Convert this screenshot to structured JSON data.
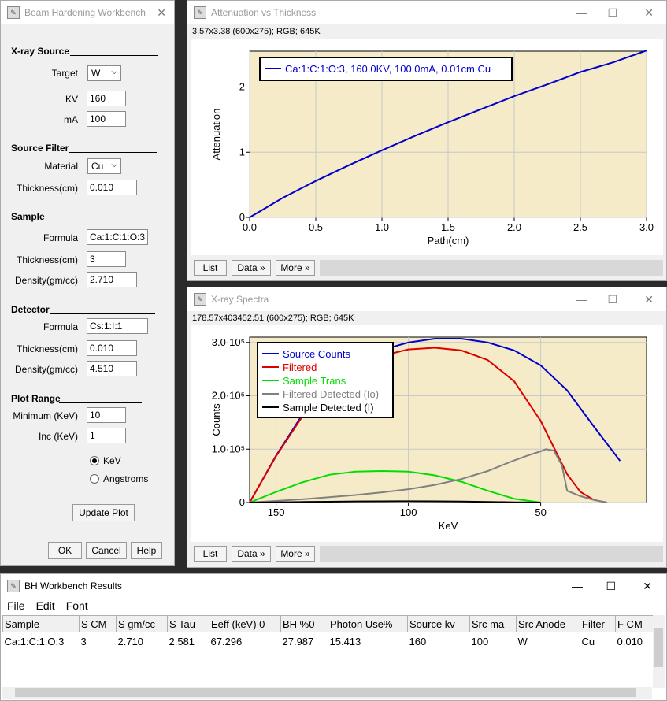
{
  "workbench": {
    "title": "Beam Hardening Workbench",
    "xray_source": {
      "heading": "X-ray Source",
      "target_label": "Target",
      "target_value": "W",
      "kv_label": "KV",
      "kv_value": "160",
      "ma_label": "mA",
      "ma_value": "100"
    },
    "source_filter": {
      "heading": "Source Filter",
      "material_label": "Material",
      "material_value": "Cu",
      "thickness_label": "Thickness(cm)",
      "thickness_value": "0.010"
    },
    "sample": {
      "heading": "Sample",
      "formula_label": "Formula",
      "formula_value": "Ca:1:C:1:O:3",
      "thickness_label": "Thickness(cm)",
      "thickness_value": "3",
      "density_label": "Density(gm/cc)",
      "density_value": "2.710"
    },
    "detector": {
      "heading": "Detector",
      "formula_label": "Formula",
      "formula_value": "Cs:1:I:1",
      "thickness_label": "Thickness(cm)",
      "thickness_value": "0.010",
      "density_label": "Density(gm/cc)",
      "density_value": "4.510"
    },
    "plot_range": {
      "heading": "Plot Range",
      "min_label": "Minimum (KeV)",
      "min_value": "10",
      "inc_label": "Inc (KeV)",
      "inc_value": "1",
      "radio_kev": "KeV",
      "radio_angstroms": "Angstroms",
      "selected": "KeV"
    },
    "update_button": "Update Plot",
    "ok_button": "OK",
    "cancel_button": "Cancel",
    "help_button": "Help"
  },
  "attenuation_window": {
    "title": "Attenuation vs Thickness",
    "info": "3.57x3.38   (600x275); RGB; 645K",
    "buttons": [
      "List",
      "Data »",
      "More »"
    ]
  },
  "spectra_window": {
    "title": "X-ray Spectra",
    "info": "178.57x403452.51   (600x275); RGB; 645K",
    "buttons": [
      "List",
      "Data »",
      "More »"
    ]
  },
  "results_window": {
    "title": "BH Workbench Results",
    "menu": [
      "File",
      "Edit",
      "Font"
    ],
    "columns": [
      "Sample",
      "S CM",
      "S gm/cc",
      "S Tau",
      "Eeff (keV) 0",
      "BH %0",
      "Photon Use%",
      "Source kv",
      "Src ma",
      "Src Anode",
      "Filter",
      "F CM"
    ],
    "rows": [
      [
        "Ca:1:C:1:O:3",
        "3",
        "2.710",
        "2.581",
        "67.296",
        "27.987",
        "15.413",
        "160",
        "100",
        "W",
        "Cu",
        "0.010"
      ]
    ]
  },
  "colors": {
    "plot_bg": "#f5ebc8",
    "blue": "#0000cc",
    "red": "#dd0000",
    "green": "#00dd00",
    "gray": "#808080",
    "black": "#000000"
  },
  "chart_data": [
    {
      "type": "line",
      "xlabel": "Path(cm)",
      "ylabel": "Attenuation",
      "xlim": [
        0,
        3.0
      ],
      "ylim": [
        0,
        2.55
      ],
      "x_ticks": [
        "0.0",
        "0.5",
        "1.0",
        "1.5",
        "2.0",
        "2.5",
        "3.0"
      ],
      "y_ticks": [
        "0",
        "1",
        "2"
      ],
      "legend_position": "top-left",
      "series": [
        {
          "name": "Ca:1:C:1:O:3, 160.0KV, 100.0mA, 0.01cm Cu",
          "color": "#0000cc",
          "x": [
            0,
            0.1,
            0.25,
            0.5,
            0.75,
            1.0,
            1.25,
            1.5,
            1.75,
            2.0,
            2.25,
            2.5,
            2.75,
            3.0
          ],
          "y": [
            0,
            0.12,
            0.3,
            0.56,
            0.8,
            1.03,
            1.25,
            1.46,
            1.66,
            1.86,
            2.04,
            2.23,
            2.38,
            2.56
          ]
        }
      ]
    },
    {
      "type": "line",
      "xlabel": "KeV",
      "ylabel": "Counts",
      "xlim": [
        160,
        10
      ],
      "ylim": [
        0,
        310000
      ],
      "x_ticks": [
        "150",
        "100",
        "50"
      ],
      "y_ticks": [
        "0",
        "1.0·10⁵",
        "2.0·10⁵",
        "3.0·10⁵"
      ],
      "legend_position": "top-left",
      "series": [
        {
          "name": "Source Counts",
          "color": "#0000cc",
          "x": [
            160,
            150,
            140,
            130,
            120,
            110,
            100,
            90,
            80,
            70,
            60,
            50,
            40,
            30,
            20
          ],
          "y": [
            0,
            88000,
            165000,
            222000,
            260000,
            286000,
            300000,
            307000,
            307000,
            300000,
            285000,
            257000,
            210000,
            143000,
            78000
          ]
        },
        {
          "name": "Filtered",
          "color": "#dd0000",
          "x": [
            160,
            150,
            140,
            130,
            120,
            110,
            100,
            90,
            80,
            70,
            60,
            50,
            40,
            35,
            30,
            25
          ],
          "y": [
            0,
            87000,
            162000,
            217000,
            252000,
            275000,
            287000,
            290000,
            285000,
            267000,
            227000,
            153000,
            53000,
            20000,
            5000,
            0
          ]
        },
        {
          "name": "Sample Trans",
          "color": "#00dd00",
          "x": [
            160,
            150,
            140,
            130,
            120,
            110,
            100,
            90,
            80,
            70,
            60,
            50
          ],
          "y": [
            0,
            20000,
            38000,
            52000,
            58000,
            59000,
            58000,
            51000,
            39000,
            22000,
            7000,
            0
          ]
        },
        {
          "name": "Filtered Detected (Io)",
          "color": "#808080",
          "x": [
            160,
            150,
            140,
            130,
            120,
            110,
            100,
            90,
            80,
            70,
            60,
            55,
            50,
            48,
            45,
            42,
            40,
            35,
            30,
            25
          ],
          "y": [
            0,
            3000,
            6000,
            10000,
            14000,
            19000,
            25000,
            33000,
            44000,
            59000,
            79000,
            88000,
            96000,
            100000,
            97000,
            70000,
            22000,
            12000,
            5000,
            0
          ]
        },
        {
          "name": "Sample Detected (I)",
          "color": "#000000",
          "x": [
            160,
            150,
            140,
            130,
            120,
            110,
            100,
            90,
            80,
            70,
            60,
            50
          ],
          "y": [
            0,
            500,
            1000,
            1500,
            2000,
            2200,
            2300,
            2200,
            1800,
            1200,
            500,
            0
          ]
        }
      ]
    }
  ]
}
